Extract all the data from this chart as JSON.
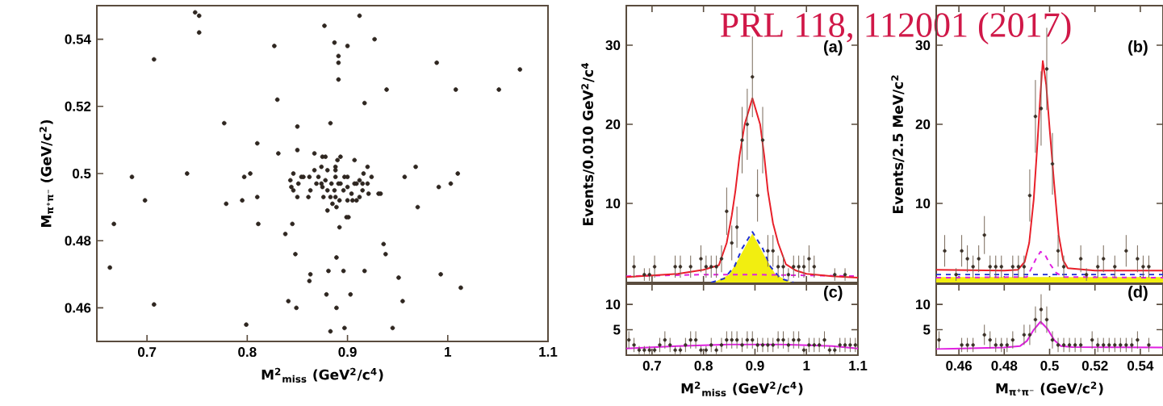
{
  "chart_data": [
    {
      "type": "scatter",
      "xlabel": "M$^{2}$$_{miss}$ (GeV$^{2}$/c$^{4}$)",
      "ylabel": "M$_{π⁺π⁻}$ (GeV/c$^{2}$)",
      "color": "#2e2620",
      "marker": "circle",
      "x": [
        0.748,
        0.752,
        0.752,
        0.707,
        0.827,
        0.877,
        0.912,
        0.887,
        0.9,
        0.927,
        0.891,
        0.891,
        0.891,
        0.989,
        1.072,
        1.008,
        1.051,
        0.939,
        0.83,
        0.917,
        0.777,
        0.85,
        0.883,
        0.81,
        0.831,
        0.85,
        0.685,
        0.74,
        0.797,
        0.803,
        0.698,
        0.779,
        0.795,
        0.81,
        0.667,
        0.811,
        0.845,
        0.838,
        0.892,
        0.901,
        0.97,
        0.957,
        0.968,
        0.991,
        1.003,
        1.01,
        0.933,
        0.936,
        0.938,
        0.848,
        0.889,
        0.881,
        0.896,
        0.917,
        0.863,
        0.862,
        0.951,
        0.993,
        1.013,
        0.663,
        0.841,
        0.849,
        0.879,
        0.903,
        0.889,
        0.955,
        0.707,
        0.799,
        0.883,
        0.897,
        0.945,
        0.867,
        0.875,
        0.878,
        0.89,
        0.893,
        0.907,
        0.92,
        0.874,
        0.88,
        0.888,
        0.888,
        0.888,
        0.846,
        0.854,
        0.843,
        0.851,
        0.844,
        0.846,
        0.85,
        0.861,
        0.863,
        0.862,
        0.867,
        0.871,
        0.874,
        0.878,
        0.875,
        0.88,
        0.876,
        0.883,
        0.885,
        0.88,
        0.889,
        0.888,
        0.892,
        0.896,
        0.9,
        0.9,
        0.907,
        0.909,
        0.912,
        0.915,
        0.916,
        0.924,
        0.92,
        0.915,
        0.912,
        0.909,
        0.904,
        0.905,
        0.921,
        0.931,
        0.899,
        0.891,
        0.884,
        0.893,
        0.897,
        0.887,
        0.869,
        0.9,
        0.856
      ],
      "values": [
        0.548,
        0.547,
        0.542,
        0.534,
        0.538,
        0.544,
        0.547,
        0.539,
        0.538,
        0.54,
        0.535,
        0.533,
        0.528,
        0.533,
        0.531,
        0.525,
        0.525,
        0.525,
        0.522,
        0.521,
        0.515,
        0.514,
        0.515,
        0.509,
        0.506,
        0.507,
        0.499,
        0.5,
        0.499,
        0.5,
        0.492,
        0.491,
        0.492,
        0.493,
        0.485,
        0.485,
        0.485,
        0.482,
        0.484,
        0.487,
        0.49,
        0.499,
        0.502,
        0.496,
        0.497,
        0.5,
        0.494,
        0.479,
        0.476,
        0.476,
        0.475,
        0.471,
        0.471,
        0.471,
        0.47,
        0.468,
        0.469,
        0.47,
        0.466,
        0.472,
        0.462,
        0.46,
        0.464,
        0.464,
        0.46,
        0.462,
        0.461,
        0.455,
        0.453,
        0.454,
        0.454,
        0.506,
        0.505,
        0.505,
        0.504,
        0.505,
        0.504,
        0.502,
        0.502,
        0.501,
        0.502,
        0.501,
        0.499,
        0.5,
        0.499,
        0.498,
        0.497,
        0.496,
        0.495,
        0.493,
        0.493,
        0.495,
        0.499,
        0.501,
        0.499,
        0.497,
        0.498,
        0.496,
        0.495,
        0.493,
        0.493,
        0.491,
        0.489,
        0.49,
        0.493,
        0.492,
        0.495,
        0.496,
        0.499,
        0.497,
        0.497,
        0.498,
        0.497,
        0.5,
        0.499,
        0.497,
        0.495,
        0.493,
        0.492,
        0.494,
        0.492,
        0.494,
        0.494,
        0.487,
        0.497,
        0.497,
        0.497,
        0.499,
        0.495,
        0.497,
        0.492,
        0.499
      ],
      "xlim": [
        0.65,
        1.1
      ],
      "ylim": [
        0.45,
        0.55
      ],
      "xticks": [
        0.7,
        0.8,
        0.9,
        1,
        1.1
      ],
      "yticks": [
        0.46,
        0.48,
        0.5,
        0.52,
        0.54
      ]
    },
    {
      "type": "scatter",
      "title": "(a)",
      "ylabel": "Events/0.010 GeV$^{2}$/c$^{4}$",
      "annotations": [
        "PRL 118, 112001 (2017)"
      ],
      "xlim": [
        0.65,
        1.1
      ],
      "ylim": [
        0,
        35
      ],
      "xticks": [
        0.7,
        0.8,
        0.9,
        1,
        1.1
      ],
      "yticks": [
        10,
        20,
        30
      ],
      "tick_labels": "y",
      "series": [
        {
          "type": "area",
          "color": "#f2ee10",
          "x": [
            0.82,
            0.85,
            0.87,
            0.895,
            0.92,
            0.94,
            0.97
          ],
          "values": [
            0,
            1,
            3.2,
            6.2,
            3.2,
            1,
            0
          ]
        },
        {
          "type": "line",
          "color": "#e020e0",
          "line_style": "dashed",
          "x": [
            0.65,
            0.8,
            0.9,
            1.0,
            1.1
          ],
          "values": [
            0.8,
            1.0,
            1.0,
            0.9,
            0.8
          ]
        },
        {
          "type": "line",
          "color": "#2030d0",
          "line_style": "dashed",
          "x": [
            0.815,
            0.84,
            0.86,
            0.875,
            0.895,
            0.915,
            0.93,
            0.95,
            0.975
          ],
          "values": [
            0,
            0.5,
            2,
            4.3,
            6.4,
            4.3,
            2,
            0.5,
            0
          ]
        },
        {
          "type": "line",
          "color": "#e8202a",
          "line_style": "solid",
          "x": [
            0.65,
            0.7,
            0.75,
            0.8,
            0.83,
            0.845,
            0.855,
            0.862,
            0.87,
            0.88,
            0.895,
            0.91,
            0.918,
            0.925,
            0.935,
            0.945,
            0.96,
            0.98,
            1.0,
            1.05,
            1.1
          ],
          "values": [
            0.7,
            0.9,
            1.1,
            1.6,
            2.2,
            5,
            8.5,
            11.6,
            16,
            20,
            23.3,
            20,
            16,
            11.6,
            7.5,
            5,
            2.3,
            1.5,
            1.1,
            0.8,
            0.6
          ]
        },
        {
          "type": "scatter",
          "color": "#3b3128",
          "marker": "circle",
          "x": [
            0.665,
            0.685,
            0.695,
            0.705,
            0.745,
            0.755,
            0.775,
            0.795,
            0.805,
            0.815,
            0.825,
            0.835,
            0.845,
            0.855,
            0.865,
            0.875,
            0.885,
            0.895,
            0.905,
            0.915,
            0.925,
            0.935,
            0.945,
            0.955,
            0.965,
            0.975,
            0.985,
            0.995,
            1.005,
            1.015,
            1.055,
            1.075
          ],
          "values": [
            2,
            1,
            1,
            2,
            2,
            2,
            2,
            3,
            2,
            2,
            2,
            3,
            9,
            5,
            7,
            18,
            20,
            26,
            11,
            18,
            4,
            4,
            2,
            2,
            1,
            2,
            2,
            2,
            3,
            2,
            1,
            1
          ],
          "errors": [
            1.4,
            0.8,
            0.8,
            1.4,
            1.4,
            1.4,
            1.4,
            1.7,
            1.4,
            1.4,
            1.4,
            1.7,
            3,
            2.2,
            2.6,
            4.2,
            4.5,
            5.1,
            3.3,
            4.2,
            2,
            2,
            1.4,
            1.4,
            0.8,
            1.4,
            1.4,
            1.4,
            1.7,
            1.4,
            0.8,
            0.8
          ]
        }
      ]
    },
    {
      "type": "scatter",
      "title": "(b)",
      "ylabel": "Events/2.5 MeV/c$^{2}$",
      "xlim": [
        0.45,
        0.55
      ],
      "ylim": [
        0,
        35
      ],
      "xticks": [
        0.46,
        0.48,
        0.5,
        0.52,
        0.54
      ],
      "yticks": [
        10,
        20,
        30
      ],
      "tick_labels": "y",
      "series": [
        {
          "type": "area",
          "color": "#f2ee10",
          "x": [
            0.45,
            0.55
          ],
          "values": [
            0.7,
            0.7
          ]
        },
        {
          "type": "line",
          "color": "#2030d0",
          "line_style": "dashed",
          "x": [
            0.45,
            0.55
          ],
          "values": [
            1.0,
            1.0
          ]
        },
        {
          "type": "line",
          "color": "#e020e0",
          "line_style": "dashed",
          "x": [
            0.45,
            0.49,
            0.492,
            0.494,
            0.496,
            0.498,
            0.5,
            0.503,
            0.506,
            0.55
          ],
          "values": [
            0.6,
            0.7,
            1.8,
            3,
            3.9,
            3.5,
            2.4,
            1.2,
            0.7,
            0.6
          ]
        },
        {
          "type": "line",
          "color": "#e8202a",
          "line_style": "solid",
          "x": [
            0.45,
            0.48,
            0.486,
            0.489,
            0.491,
            0.493,
            0.4945,
            0.496,
            0.497,
            0.4985,
            0.5,
            0.502,
            0.504,
            0.506,
            0.508,
            0.52,
            0.55
          ],
          "values": [
            1.6,
            1.5,
            1.6,
            2.6,
            5,
            10.5,
            17,
            24,
            28,
            25,
            19.5,
            12.5,
            6,
            2.8,
            1.8,
            1.5,
            1.5
          ]
        },
        {
          "type": "scatter",
          "color": "#3b3128",
          "marker": "circle",
          "x": [
            0.45375,
            0.45875,
            0.46125,
            0.46375,
            0.46625,
            0.46875,
            0.47125,
            0.47375,
            0.47625,
            0.47875,
            0.48375,
            0.48625,
            0.48875,
            0.49125,
            0.49375,
            0.49625,
            0.49875,
            0.50125,
            0.50375,
            0.50625,
            0.51375,
            0.51625,
            0.52125,
            0.52375,
            0.52875,
            0.53375,
            0.53875,
            0.54125,
            0.54375
          ],
          "values": [
            4,
            1,
            4,
            3,
            2,
            3,
            6,
            2,
            2,
            2,
            2,
            2,
            2,
            11,
            21,
            22,
            27,
            15,
            4,
            2,
            3,
            1,
            2,
            3,
            2,
            4,
            3,
            2,
            2
          ],
          "errors": [
            2,
            0.8,
            2,
            1.7,
            1.4,
            1.7,
            2.4,
            1.4,
            1.4,
            1.4,
            1.4,
            1.4,
            1.4,
            3.3,
            4.6,
            4.7,
            5.2,
            3.9,
            2,
            1.4,
            1.7,
            0.8,
            1.4,
            1.7,
            1.4,
            2,
            1.7,
            1.4,
            1.4
          ]
        }
      ]
    },
    {
      "type": "scatter",
      "title": "(c)",
      "xlabel": "M$^{2}$$_{miss}$ (GeV$^{2}$/c$^{4}$)",
      "xlim": [
        0.65,
        1.1
      ],
      "ylim": [
        0,
        14
      ],
      "xticks": [
        0.7,
        0.8,
        0.9,
        1,
        1.1
      ],
      "yticks": [
        5,
        10
      ],
      "series": [
        {
          "type": "line",
          "color": "#e020e0",
          "line_style": "solid",
          "x": [
            0.65,
            0.75,
            0.85,
            0.9,
            0.95,
            1.05,
            1.1
          ],
          "values": [
            1.3,
            1.8,
            2.1,
            2.1,
            2.1,
            1.8,
            1.3
          ]
        },
        {
          "type": "scatter",
          "color": "#3b3128",
          "marker": "circle",
          "x": [
            0.655,
            0.665,
            0.675,
            0.685,
            0.695,
            0.705,
            0.715,
            0.725,
            0.735,
            0.745,
            0.755,
            0.765,
            0.775,
            0.785,
            0.795,
            0.805,
            0.815,
            0.825,
            0.835,
            0.845,
            0.855,
            0.865,
            0.875,
            0.885,
            0.895,
            0.905,
            0.915,
            0.925,
            0.935,
            0.945,
            0.955,
            0.965,
            0.975,
            0.985,
            0.995,
            1.005,
            1.015,
            1.025,
            1.035,
            1.045,
            1.055,
            1.065,
            1.075,
            1.085,
            1.095
          ],
          "values": [
            3,
            2,
            1,
            1,
            1,
            1,
            2,
            3,
            2,
            1,
            1,
            2,
            3,
            3,
            1,
            1,
            2,
            1,
            2,
            3,
            3,
            3,
            2,
            3,
            3,
            2,
            2,
            2,
            2,
            3,
            3,
            2,
            3,
            3,
            1,
            2,
            2,
            2,
            3,
            1,
            1,
            2,
            2,
            2,
            2
          ],
          "errors": [
            1.7,
            1.4,
            0.8,
            0.8,
            0.8,
            0.6,
            1.4,
            1.7,
            1.4,
            0.8,
            0.8,
            1.4,
            1.7,
            1.7,
            0.8,
            0.8,
            1.4,
            0.8,
            1.4,
            1.7,
            1.7,
            1.7,
            1.4,
            1.7,
            1.7,
            1.4,
            1.4,
            1.4,
            1.4,
            1.7,
            1.7,
            1.4,
            1.7,
            1.7,
            0.8,
            1.4,
            1.4,
            1.4,
            1.7,
            0.8,
            0.8,
            1.4,
            1.4,
            1.4,
            1.4
          ]
        }
      ]
    },
    {
      "type": "scatter",
      "title": "(d)",
      "xlabel": "M$_{π⁺π⁻}$ (GeV/c$^{2}$)",
      "xlim": [
        0.45,
        0.55
      ],
      "ylim": [
        0,
        14
      ],
      "xticks": [
        0.46,
        0.48,
        0.5,
        0.52,
        0.54
      ],
      "yticks": [
        5,
        10
      ],
      "series": [
        {
          "type": "line",
          "color": "#e020e0",
          "line_style": "solid",
          "x": [
            0.45,
            0.48,
            0.487,
            0.49,
            0.493,
            0.496,
            0.499,
            0.502,
            0.505,
            0.51,
            0.55
          ],
          "values": [
            1.2,
            1.5,
            1.8,
            2.8,
            5,
            6.6,
            5.2,
            3,
            1.8,
            1.6,
            1.5
          ]
        },
        {
          "type": "scatter",
          "color": "#3b3128",
          "marker": "circle",
          "x": [
            0.45125,
            0.46125,
            0.46375,
            0.46625,
            0.47125,
            0.47375,
            0.47625,
            0.47875,
            0.48125,
            0.48375,
            0.48875,
            0.49125,
            0.49375,
            0.49625,
            0.49875,
            0.50125,
            0.50375,
            0.50625,
            0.50875,
            0.51125,
            0.51375,
            0.51875,
            0.52125,
            0.52375,
            0.52625,
            0.52875,
            0.53125,
            0.53375,
            0.53625,
            0.53875,
            0.54375
          ],
          "values": [
            3,
            2,
            2,
            2,
            4,
            3,
            2,
            2,
            2,
            3,
            4,
            4,
            7,
            9,
            7,
            3,
            2,
            2,
            2,
            2,
            2,
            3,
            2,
            2,
            2,
            2,
            2,
            2,
            2,
            3,
            2
          ],
          "errors": [
            1.7,
            1.4,
            1.4,
            1.4,
            2,
            1.7,
            1.4,
            1.4,
            1.4,
            1.7,
            2,
            2,
            2.6,
            3,
            2.6,
            1.7,
            1.4,
            1.4,
            1.4,
            1.4,
            1.4,
            1.7,
            1.4,
            1.4,
            1.4,
            1.4,
            1.4,
            1.4,
            1.4,
            1.7,
            1.4
          ]
        }
      ]
    }
  ]
}
